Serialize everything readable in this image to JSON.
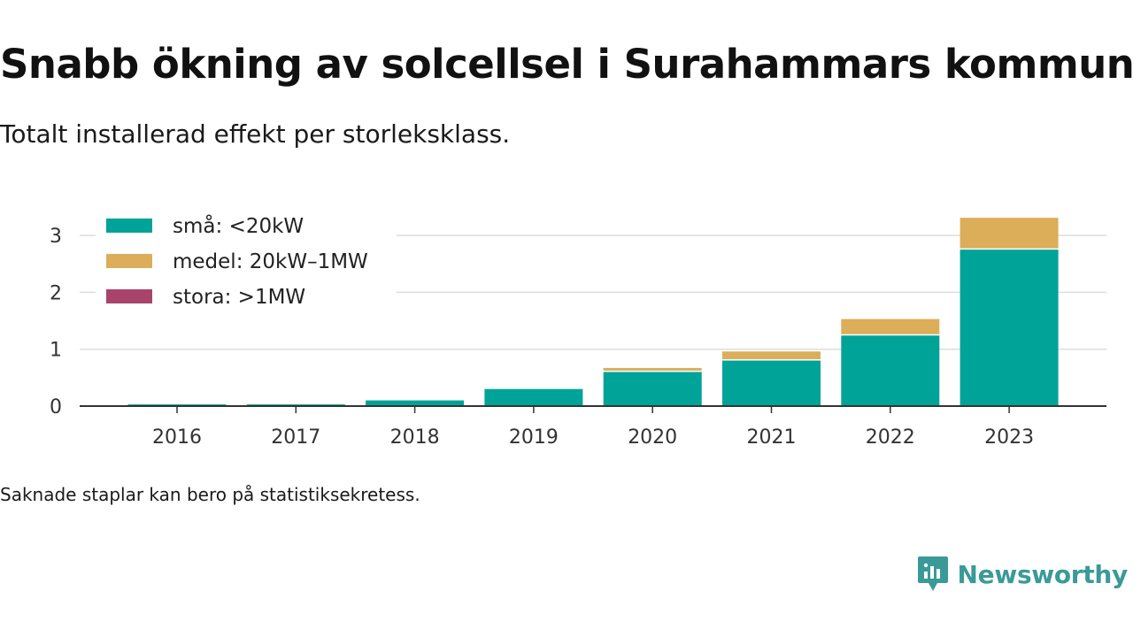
{
  "title": "Snabb ökning av solcellsel i Surahammars kommun",
  "subtitle": "Totalt installerad effekt per storleksklass.",
  "footnote": "Saknade staplar kan bero på statistiksekretess.",
  "brand": "Newsworthy",
  "colors": {
    "small": "#00a398",
    "medium": "#dcae5a",
    "large": "#a8446c",
    "grid": "#dddddd",
    "axis": "#333333",
    "brand": "#3a9a98"
  },
  "chart_data": {
    "type": "bar",
    "stacked": true,
    "categories": [
      "2016",
      "2017",
      "2018",
      "2019",
      "2020",
      "2021",
      "2022",
      "2023"
    ],
    "series": [
      {
        "name": "små: <20kW",
        "color": "#00a398",
        "values": [
          0.03,
          0.03,
          0.1,
          0.3,
          0.6,
          0.8,
          1.24,
          2.75
        ]
      },
      {
        "name": "medel: 20kW–1MW",
        "color": "#dcae5a",
        "values": [
          0,
          0,
          0,
          0,
          0.07,
          0.16,
          0.29,
          0.56
        ]
      },
      {
        "name": "stora: >1MW",
        "color": "#a8446c",
        "values": [
          0,
          0,
          0,
          0,
          0,
          0,
          0,
          0
        ]
      }
    ],
    "yticks": [
      0,
      1,
      2,
      3
    ],
    "ylim": [
      0,
      3.3
    ],
    "grid": true,
    "legend": "top-left"
  }
}
